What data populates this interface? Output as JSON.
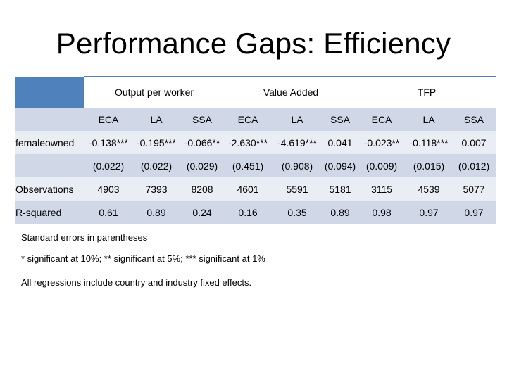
{
  "slide": {
    "title": "Performance Gaps:  Efficiency"
  },
  "table": {
    "group_headers": [
      "Output per worker",
      "Value Added",
      "TFP"
    ],
    "sub_headers": [
      "ECA",
      "LA",
      "SSA",
      "ECA",
      "LA",
      "SSA",
      "ECA",
      "LA",
      "SSA"
    ],
    "rows": [
      {
        "label": "femaleowned",
        "values": [
          "-0.138***",
          "-0.195***",
          "-0.066**",
          "-2.630***",
          "-4.619***",
          "0.041",
          "-0.023**",
          "-0.118***",
          "0.007"
        ]
      },
      {
        "label": "",
        "values": [
          "(0.022)",
          "(0.022)",
          "(0.029)",
          "(0.451)",
          "(0.908)",
          "(0.094)",
          "(0.009)",
          "(0.015)",
          "(0.012)"
        ]
      },
      {
        "label": "Observations",
        "values": [
          "4903",
          "7393",
          "8208",
          "4601",
          "5591",
          "5181",
          "3115",
          "4539",
          "5077"
        ]
      },
      {
        "label": "R-squared",
        "values": [
          "0.61",
          "0.89",
          "0.24",
          "0.16",
          "0.35",
          "0.89",
          "0.98",
          "0.97",
          "0.97"
        ]
      }
    ]
  },
  "notes": [
    "Standard errors in parentheses",
    "* significant at 10%; ** significant at 5%; *** significant at 1%",
    "All regressions include country and industry fixed effects."
  ],
  "colors": {
    "header_blue": "#4f81bd",
    "band_light": "#d0d8e8",
    "band_lighter": "#e9edf4"
  }
}
